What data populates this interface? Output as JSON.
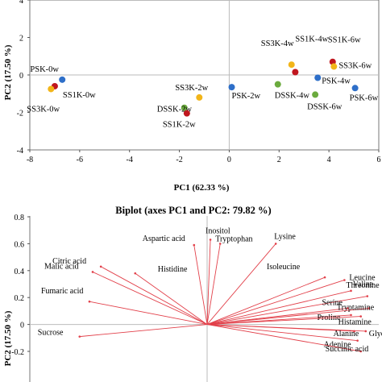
{
  "chart_data": [
    {
      "type": "scatter",
      "xlabel": "PC1 (62.33 %)",
      "ylabel": "PC2 (17.50 %)",
      "xlim": [
        -8,
        6
      ],
      "ylim": [
        -4,
        4
      ],
      "xticks": [
        -8,
        -6,
        -4,
        -2,
        0,
        2,
        4,
        6
      ],
      "yticks": [
        -4,
        -2,
        0,
        2,
        4
      ],
      "grid": false,
      "points": [
        {
          "label": "PSK-0w",
          "x": -6.7,
          "y": -0.25,
          "color": "#2e6fc9"
        },
        {
          "label": "SS1K-0w",
          "x": -7.0,
          "y": -0.6,
          "color": "#c0161e"
        },
        {
          "label": "SS3K-0w",
          "x": -7.15,
          "y": -0.75,
          "color": "#f2b519"
        },
        {
          "label": "SS3K-2w",
          "x": -1.2,
          "y": -1.2,
          "color": "#f2b519"
        },
        {
          "label": "DSSK-2w",
          "x": -1.8,
          "y": -1.75,
          "color": "#6bab3e"
        },
        {
          "label": "SS1K-2w",
          "x": -1.7,
          "y": -2.05,
          "color": "#c0161e"
        },
        {
          "label": "PSK-2w",
          "x": 0.1,
          "y": -0.65,
          "color": "#2e6fc9"
        },
        {
          "label": "SS3K-4w",
          "x": 2.5,
          "y": 0.55,
          "color": "#f2b519"
        },
        {
          "label": "SS1K-4w",
          "x": 2.65,
          "y": 0.15,
          "color": "#c0161e"
        },
        {
          "label": "DSSK-4w",
          "x": 1.95,
          "y": -0.5,
          "color": "#6bab3e"
        },
        {
          "label": "SS1K-6w",
          "x": 4.15,
          "y": 0.7,
          "color": "#c0161e"
        },
        {
          "label": "SS3K-6w",
          "x": 4.2,
          "y": 0.45,
          "color": "#f2b519"
        },
        {
          "label": "PSK-4w",
          "x": 3.55,
          "y": -0.15,
          "color": "#2e6fc9"
        },
        {
          "label": "DSSK-6w",
          "x": 3.45,
          "y": -1.05,
          "color": "#6bab3e"
        },
        {
          "label": "PSK-6w",
          "x": 5.05,
          "y": -0.7,
          "color": "#2e6fc9"
        }
      ]
    },
    {
      "type": "biplot",
      "title": "Biplot (axes PC1 and PC2: 79.82 %)",
      "xlabel": "",
      "ylabel": "PC2 (17.50 %)",
      "ylim": [
        -0.2,
        0.8
      ],
      "yticks": [
        -0.2,
        0,
        0.2,
        0.4,
        0.6,
        0.8
      ],
      "xlim": [
        -1,
        1
      ],
      "grid": false,
      "vectors": [
        {
          "label": "Inositol",
          "x": 0.02,
          "y": 0.63
        },
        {
          "label": "Tryptophan",
          "x": 0.08,
          "y": 0.6
        },
        {
          "label": "Lysine",
          "x": 0.42,
          "y": 0.6
        },
        {
          "label": "Aspartic acid",
          "x": -0.08,
          "y": 0.59
        },
        {
          "label": "Citric acid",
          "x": -0.65,
          "y": 0.43
        },
        {
          "label": "Malic acid",
          "x": -0.7,
          "y": 0.39
        },
        {
          "label": "Histidine",
          "x": -0.44,
          "y": 0.38
        },
        {
          "label": "Isoleucine",
          "x": 0.72,
          "y": 0.35
        },
        {
          "label": "Leucine",
          "x": 0.84,
          "y": 0.33
        },
        {
          "label": "Threonine",
          "x": 0.88,
          "y": 0.25
        },
        {
          "label": "Fumaric acid",
          "x": -0.72,
          "y": 0.17
        },
        {
          "label": "Valine",
          "x": 0.98,
          "y": 0.21
        },
        {
          "label": "Serine",
          "x": 0.86,
          "y": 0.12
        },
        {
          "label": "Tryptamine",
          "x": 0.99,
          "y": 0.12
        },
        {
          "label": "Proline",
          "x": 0.88,
          "y": 0.07
        },
        {
          "label": "Histamine",
          "x": 0.94,
          "y": 0.06
        },
        {
          "label": "Sucrose",
          "x": -0.78,
          "y": -0.09
        },
        {
          "label": "Alanine",
          "x": 0.9,
          "y": -0.05
        },
        {
          "label": "Glycine",
          "x": 0.97,
          "y": -0.05
        },
        {
          "label": "Adenine",
          "x": 0.92,
          "y": -0.12
        },
        {
          "label": "Succinic acid",
          "x": 0.94,
          "y": -0.2
        }
      ]
    }
  ]
}
